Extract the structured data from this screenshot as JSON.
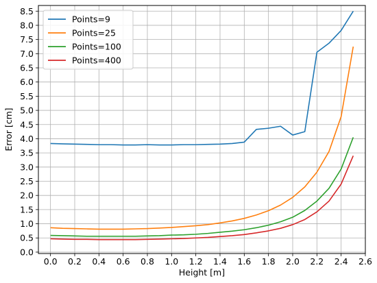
{
  "chart_data": {
    "type": "line",
    "title": "",
    "xlabel": "Height [m]",
    "ylabel": "Error [cm]",
    "xlim": [
      -0.1,
      2.6
    ],
    "ylim": [
      -0.05,
      8.7
    ],
    "grid": true,
    "legend_position": "top-left",
    "x_ticks": [
      0.0,
      0.2,
      0.4,
      0.6,
      0.8,
      1.0,
      1.2,
      1.4,
      1.6,
      1.8,
      2.0,
      2.2,
      2.4,
      2.6
    ],
    "x_tick_labels": [
      "0.0",
      "0.2",
      "0.4",
      "0.6",
      "0.8",
      "1.0",
      "1.2",
      "1.4",
      "1.6",
      "1.8",
      "2.0",
      "2.2",
      "2.4",
      "2.6"
    ],
    "y_ticks": [
      0.0,
      0.5,
      1.0,
      1.5,
      2.0,
      2.5,
      3.0,
      3.5,
      4.0,
      4.5,
      5.0,
      5.5,
      6.0,
      6.5,
      7.0,
      7.5,
      8.0,
      8.5
    ],
    "y_tick_labels": [
      "0.0",
      "0.5",
      "1.0",
      "1.5",
      "2.0",
      "2.5",
      "3.0",
      "3.5",
      "4.0",
      "4.5",
      "5.0",
      "5.5",
      "6.0",
      "6.5",
      "7.0",
      "7.5",
      "8.0",
      "8.5"
    ],
    "x": [
      0.0,
      0.1,
      0.2,
      0.3,
      0.4,
      0.5,
      0.6,
      0.7,
      0.8,
      0.9,
      1.0,
      1.1,
      1.2,
      1.3,
      1.4,
      1.5,
      1.6,
      1.7,
      1.8,
      1.9,
      2.0,
      2.1,
      2.2,
      2.3,
      2.4,
      2.5
    ],
    "series": [
      {
        "name": "Points=9",
        "color": "#1f77b4",
        "values": [
          3.83,
          3.82,
          3.81,
          3.8,
          3.79,
          3.79,
          3.78,
          3.78,
          3.79,
          3.78,
          3.78,
          3.79,
          3.79,
          3.8,
          3.81,
          3.83,
          3.88,
          4.33,
          4.37,
          4.44,
          4.13,
          4.25,
          7.05,
          7.37,
          7.82,
          8.5
        ]
      },
      {
        "name": "Points=25",
        "color": "#ff7f0e",
        "values": [
          0.86,
          0.84,
          0.83,
          0.82,
          0.81,
          0.81,
          0.81,
          0.82,
          0.83,
          0.85,
          0.87,
          0.9,
          0.93,
          0.97,
          1.03,
          1.1,
          1.19,
          1.31,
          1.46,
          1.66,
          1.93,
          2.3,
          2.82,
          3.55,
          4.78,
          7.25
        ]
      },
      {
        "name": "Points=100",
        "color": "#2ca02c",
        "values": [
          0.59,
          0.58,
          0.57,
          0.56,
          0.56,
          0.56,
          0.56,
          0.56,
          0.57,
          0.58,
          0.6,
          0.61,
          0.63,
          0.66,
          0.7,
          0.74,
          0.79,
          0.86,
          0.95,
          1.07,
          1.23,
          1.47,
          1.8,
          2.25,
          2.93,
          4.05
        ]
      },
      {
        "name": "Points=400",
        "color": "#d62728",
        "values": [
          0.47,
          0.46,
          0.45,
          0.45,
          0.44,
          0.44,
          0.44,
          0.44,
          0.45,
          0.46,
          0.47,
          0.48,
          0.5,
          0.52,
          0.55,
          0.58,
          0.62,
          0.68,
          0.75,
          0.84,
          0.97,
          1.15,
          1.42,
          1.8,
          2.4,
          3.4
        ]
      }
    ]
  }
}
